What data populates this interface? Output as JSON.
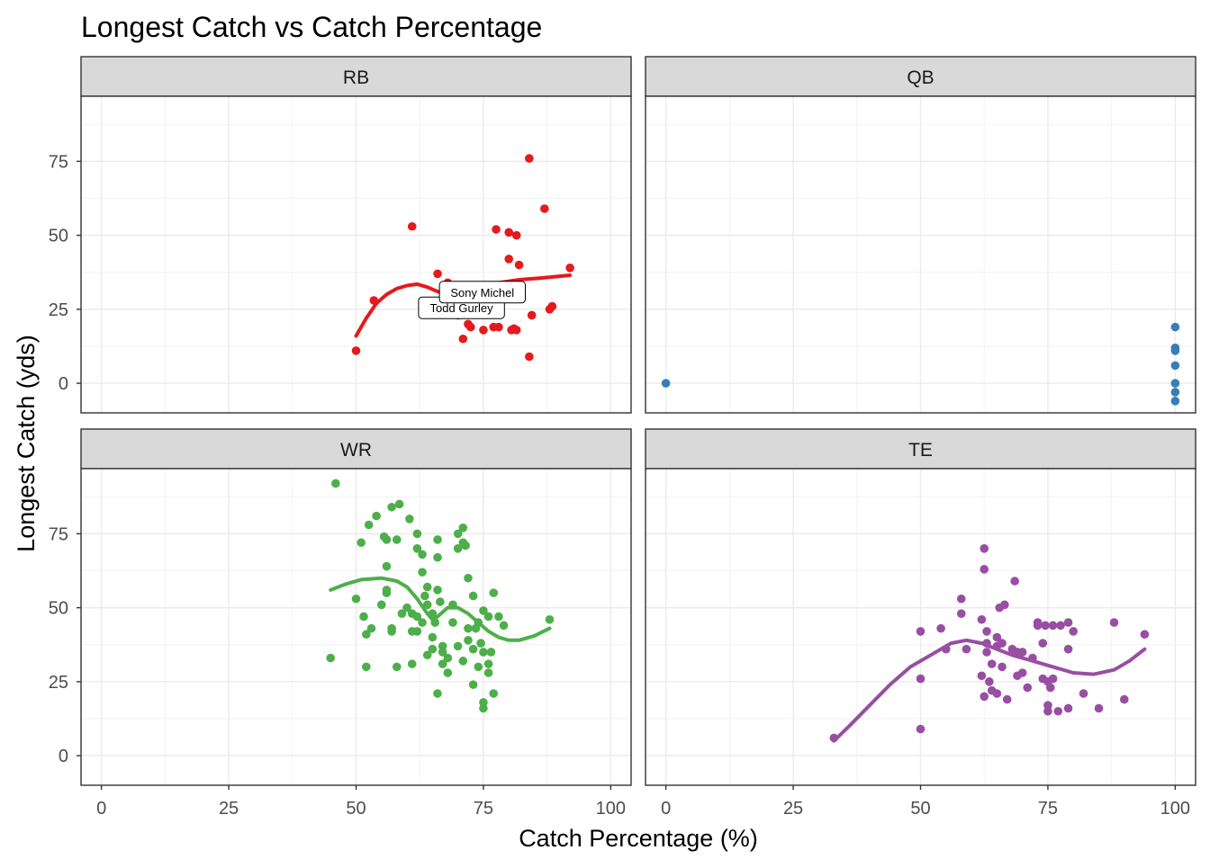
{
  "title": "Longest Catch vs Catch Percentage",
  "xlabel": "Catch Percentage (%)",
  "ylabel": "Longest Catch (yds)",
  "chart_data": {
    "type": "scatter",
    "title": "Longest Catch vs Catch Percentage",
    "xlabel": "Catch Percentage (%)",
    "ylabel": "Longest Catch (yds)",
    "xlim": [
      -4,
      104
    ],
    "ylim": [
      -10,
      97
    ],
    "x_ticks": [
      "0",
      "25",
      "50",
      "75",
      "100"
    ],
    "y_ticks": [
      "0",
      "25",
      "50",
      "75"
    ],
    "grid": true,
    "legend": "none",
    "facets": [
      {
        "name": "RB",
        "color": "#E41A1C",
        "points": [
          [
            50,
            11
          ],
          [
            53.5,
            28
          ],
          [
            61,
            53
          ],
          [
            66,
            37
          ],
          [
            68,
            34
          ],
          [
            70,
            23
          ],
          [
            71,
            15
          ],
          [
            72,
            20
          ],
          [
            72.5,
            19
          ],
          [
            75,
            18
          ],
          [
            77,
            19
          ],
          [
            77.5,
            52
          ],
          [
            78,
            19
          ],
          [
            80,
            42
          ],
          [
            80,
            51
          ],
          [
            80.5,
            18
          ],
          [
            81,
            18.5
          ],
          [
            81.5,
            50
          ],
          [
            81.5,
            18
          ],
          [
            82,
            40
          ],
          [
            84,
            76
          ],
          [
            84,
            9
          ],
          [
            84.5,
            23
          ],
          [
            87,
            59
          ],
          [
            88,
            25
          ],
          [
            88.5,
            26
          ],
          [
            92,
            39
          ]
        ],
        "smooth": [
          [
            50,
            16
          ],
          [
            52,
            22
          ],
          [
            54,
            27
          ],
          [
            56,
            30
          ],
          [
            58,
            32
          ],
          [
            60,
            33
          ],
          [
            62,
            33.5
          ],
          [
            64,
            32.5
          ],
          [
            66,
            31
          ],
          [
            68,
            30
          ],
          [
            70,
            31
          ],
          [
            72,
            32
          ],
          [
            75,
            33
          ],
          [
            78,
            34
          ],
          [
            82,
            35
          ],
          [
            86,
            35.5
          ],
          [
            92,
            36.5
          ]
        ],
        "labels": [
          {
            "text": "Todd Gurley",
            "x": 70.7,
            "y": 25.5
          },
          {
            "text": "Sony Michel",
            "x": 74.8,
            "y": 30.8
          }
        ]
      },
      {
        "name": "QB",
        "color": "#377EB8",
        "points": [
          [
            0,
            0
          ],
          [
            100,
            19
          ],
          [
            100,
            12
          ],
          [
            100,
            11
          ],
          [
            100,
            6
          ],
          [
            100,
            0
          ],
          [
            100,
            -3
          ],
          [
            100,
            -6
          ]
        ],
        "smooth": [],
        "labels": []
      },
      {
        "name": "WR",
        "color": "#4DAF4A",
        "points": [
          [
            46,
            92
          ],
          [
            45,
            33
          ],
          [
            50,
            53
          ],
          [
            51,
            72
          ],
          [
            51.5,
            47
          ],
          [
            52,
            41
          ],
          [
            52,
            30
          ],
          [
            52.5,
            78
          ],
          [
            53,
            43
          ],
          [
            54,
            81
          ],
          [
            55,
            51
          ],
          [
            55.5,
            74
          ],
          [
            56,
            73
          ],
          [
            56,
            64
          ],
          [
            56,
            56
          ],
          [
            56,
            55
          ],
          [
            57,
            84
          ],
          [
            57,
            42
          ],
          [
            57,
            43
          ],
          [
            58,
            30
          ],
          [
            58,
            73
          ],
          [
            58.5,
            85
          ],
          [
            59,
            48
          ],
          [
            60,
            50
          ],
          [
            60.5,
            80
          ],
          [
            61,
            31
          ],
          [
            61,
            48
          ],
          [
            61,
            42
          ],
          [
            62,
            42
          ],
          [
            62,
            70
          ],
          [
            62,
            75
          ],
          [
            62,
            47
          ],
          [
            63,
            68
          ],
          [
            63,
            62
          ],
          [
            63,
            45
          ],
          [
            63.5,
            54
          ],
          [
            64,
            57
          ],
          [
            64,
            34
          ],
          [
            64,
            51
          ],
          [
            65,
            48
          ],
          [
            65,
            36
          ],
          [
            65,
            40
          ],
          [
            65.5,
            45
          ],
          [
            66,
            73
          ],
          [
            66,
            67
          ],
          [
            66,
            56
          ],
          [
            66,
            21
          ],
          [
            66.5,
            52
          ],
          [
            67,
            37
          ],
          [
            67,
            35
          ],
          [
            67,
            31
          ],
          [
            68,
            33
          ],
          [
            68,
            28
          ],
          [
            69,
            51
          ],
          [
            69,
            45
          ],
          [
            70,
            75
          ],
          [
            70,
            70
          ],
          [
            70,
            37
          ],
          [
            71,
            77
          ],
          [
            71,
            72
          ],
          [
            71,
            32
          ],
          [
            71.5,
            71
          ],
          [
            72,
            60
          ],
          [
            72,
            43
          ],
          [
            72,
            39
          ],
          [
            73,
            54
          ],
          [
            73,
            36
          ],
          [
            73,
            24
          ],
          [
            73.5,
            43
          ],
          [
            74,
            45
          ],
          [
            74,
            30
          ],
          [
            74.5,
            38
          ],
          [
            75,
            49
          ],
          [
            75,
            35
          ],
          [
            75,
            16
          ],
          [
            75,
            18
          ],
          [
            76,
            47
          ],
          [
            76,
            31
          ],
          [
            76,
            28
          ],
          [
            76.5,
            35
          ],
          [
            77,
            55
          ],
          [
            77,
            21
          ],
          [
            78,
            47
          ],
          [
            79,
            44
          ],
          [
            88,
            46
          ]
        ],
        "smooth": [
          [
            45,
            56
          ],
          [
            48,
            58
          ],
          [
            51,
            59.5
          ],
          [
            55,
            60
          ],
          [
            58,
            59
          ],
          [
            60,
            57
          ],
          [
            62,
            53
          ],
          [
            64,
            48
          ],
          [
            65,
            46
          ],
          [
            66,
            47
          ],
          [
            68,
            50
          ],
          [
            70,
            50
          ],
          [
            72,
            48
          ],
          [
            74,
            45
          ],
          [
            76,
            42
          ],
          [
            78,
            40
          ],
          [
            80,
            39
          ],
          [
            82,
            39
          ],
          [
            85,
            40.5
          ],
          [
            88,
            43
          ]
        ],
        "labels": []
      },
      {
        "name": "TE",
        "color": "#984EA3",
        "points": [
          [
            33,
            6
          ],
          [
            50,
            42
          ],
          [
            50,
            26
          ],
          [
            50,
            9
          ],
          [
            54,
            43
          ],
          [
            55,
            36
          ],
          [
            58,
            53
          ],
          [
            58,
            48
          ],
          [
            59,
            36
          ],
          [
            62,
            46
          ],
          [
            62,
            27
          ],
          [
            62.5,
            70
          ],
          [
            62.5,
            63
          ],
          [
            62.5,
            20
          ],
          [
            63,
            42
          ],
          [
            63,
            38
          ],
          [
            63,
            35
          ],
          [
            63.5,
            25
          ],
          [
            64,
            31
          ],
          [
            64,
            22
          ],
          [
            65,
            21
          ],
          [
            65,
            40
          ],
          [
            65,
            37
          ],
          [
            65.5,
            50
          ],
          [
            66,
            38
          ],
          [
            66,
            30
          ],
          [
            66.5,
            51
          ],
          [
            67,
            19
          ],
          [
            68,
            36
          ],
          [
            68.5,
            59
          ],
          [
            69,
            27
          ],
          [
            69,
            35
          ],
          [
            70,
            28
          ],
          [
            70,
            35
          ],
          [
            71,
            23
          ],
          [
            72,
            33
          ],
          [
            73,
            45
          ],
          [
            73,
            44
          ],
          [
            74,
            38
          ],
          [
            74,
            26
          ],
          [
            74.5,
            44
          ],
          [
            75,
            17
          ],
          [
            75,
            15
          ],
          [
            75,
            25
          ],
          [
            75.5,
            23
          ],
          [
            76,
            44
          ],
          [
            76,
            26
          ],
          [
            77,
            15
          ],
          [
            77.5,
            44
          ],
          [
            79,
            36
          ],
          [
            79,
            45
          ],
          [
            79,
            16
          ],
          [
            80,
            42
          ],
          [
            82,
            21
          ],
          [
            85,
            16
          ],
          [
            88,
            45
          ],
          [
            90,
            19
          ],
          [
            94,
            41
          ]
        ],
        "smooth": [
          [
            33,
            5
          ],
          [
            36,
            10
          ],
          [
            40,
            17
          ],
          [
            44,
            24
          ],
          [
            48,
            30
          ],
          [
            52,
            34
          ],
          [
            56,
            38
          ],
          [
            59,
            39
          ],
          [
            62,
            38
          ],
          [
            65,
            36
          ],
          [
            68,
            34
          ],
          [
            72,
            32
          ],
          [
            76,
            30
          ],
          [
            80,
            28
          ],
          [
            84,
            27.5
          ],
          [
            88,
            29
          ],
          [
            91,
            32
          ],
          [
            94,
            36
          ]
        ],
        "labels": []
      }
    ]
  }
}
